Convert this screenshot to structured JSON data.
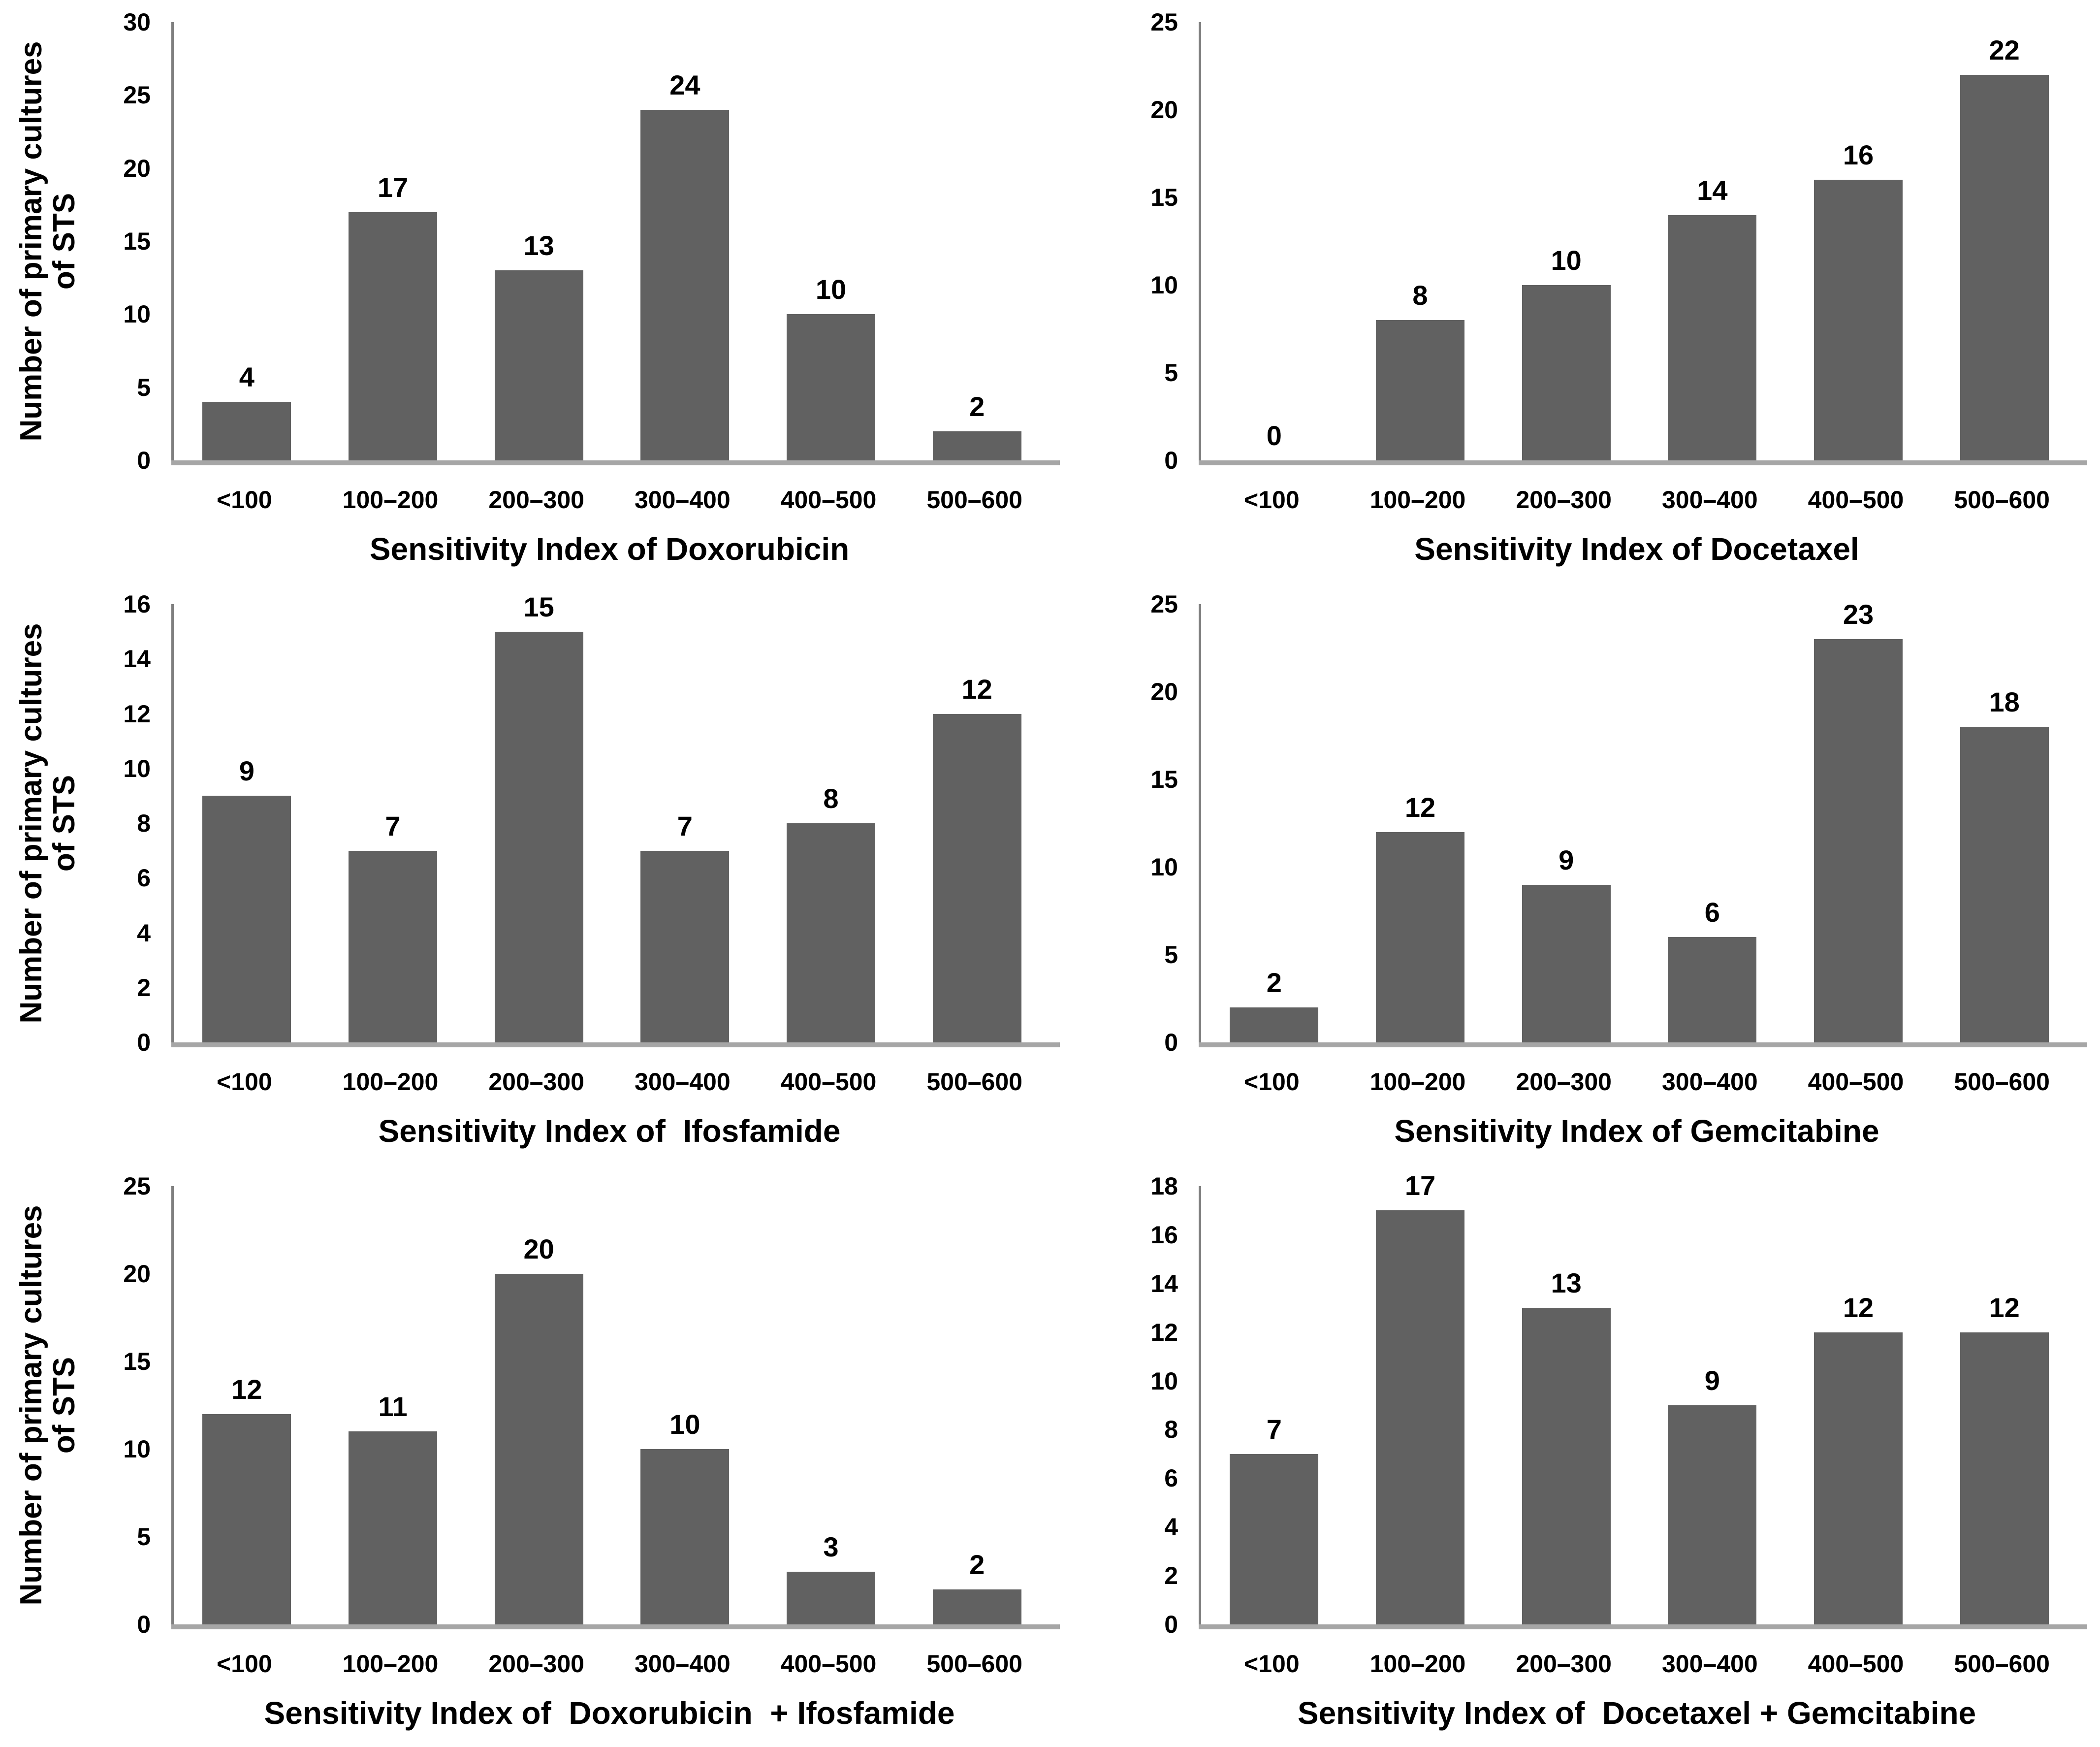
{
  "figure": {
    "y_axis_title_lines": [
      "Number of primary cultures",
      "of STS"
    ],
    "colors": {
      "bar": "#616161",
      "axis_line": "#7f7f7f",
      "baseline": "#a6a6a6",
      "text": "#000000",
      "background": "#ffffff"
    }
  },
  "chart_data": [
    {
      "type": "bar",
      "position": "top-left",
      "xlabel": "Sensitivity Index of Doxorubicin",
      "ylabel": "Number of primary cultures of STS",
      "categories": [
        "<100",
        "100–200",
        "200–300",
        "300–400",
        "400–500",
        "500–600"
      ],
      "values": [
        4,
        17,
        13,
        24,
        10,
        2
      ],
      "ylim": [
        0,
        30
      ],
      "ytick_step": 5,
      "grid": false,
      "data_labels": true,
      "show_y_axis_title": true
    },
    {
      "type": "bar",
      "position": "top-right",
      "xlabel": "Sensitivity Index of Docetaxel",
      "ylabel": "",
      "categories": [
        "<100",
        "100–200",
        "200–300",
        "300–400",
        "400–500",
        "500–600"
      ],
      "values": [
        0,
        8,
        10,
        14,
        16,
        22
      ],
      "ylim": [
        0,
        25
      ],
      "ytick_step": 5,
      "grid": false,
      "data_labels": true,
      "show_y_axis_title": false
    },
    {
      "type": "bar",
      "position": "middle-left",
      "xlabel": "Sensitivity Index of  Ifosfamide",
      "ylabel": "Number of primary cultures of STS",
      "categories": [
        "<100",
        "100–200",
        "200–300",
        "300–400",
        "400–500",
        "500–600"
      ],
      "values": [
        9,
        7,
        15,
        7,
        8,
        12
      ],
      "ylim": [
        0,
        16
      ],
      "ytick_step": 2,
      "grid": false,
      "data_labels": true,
      "show_y_axis_title": true
    },
    {
      "type": "bar",
      "position": "middle-right",
      "xlabel": "Sensitivity Index of Gemcitabine",
      "ylabel": "",
      "categories": [
        "<100",
        "100–200",
        "200–300",
        "300–400",
        "400–500",
        "500–600"
      ],
      "values": [
        2,
        12,
        9,
        6,
        23,
        18
      ],
      "ylim": [
        0,
        25
      ],
      "ytick_step": 5,
      "grid": false,
      "data_labels": true,
      "show_y_axis_title": false
    },
    {
      "type": "bar",
      "position": "bottom-left",
      "xlabel": "Sensitivity Index of  Doxorubicin  + Ifosfamide",
      "ylabel": "Number of primary cultures of STS",
      "categories": [
        "<100",
        "100–200",
        "200–300",
        "300–400",
        "400–500",
        "500–600"
      ],
      "values": [
        12,
        11,
        20,
        10,
        3,
        2
      ],
      "ylim": [
        0,
        25
      ],
      "ytick_step": 5,
      "grid": false,
      "data_labels": true,
      "show_y_axis_title": true
    },
    {
      "type": "bar",
      "position": "bottom-right",
      "xlabel": "Sensitivity Index of  Docetaxel + Gemcitabine",
      "ylabel": "",
      "categories": [
        "<100",
        "100–200",
        "200–300",
        "300–400",
        "400–500",
        "500–600"
      ],
      "values": [
        7,
        17,
        13,
        9,
        12,
        12
      ],
      "ylim": [
        0,
        18
      ],
      "ytick_step": 2,
      "grid": false,
      "data_labels": true,
      "show_y_axis_title": false
    }
  ]
}
